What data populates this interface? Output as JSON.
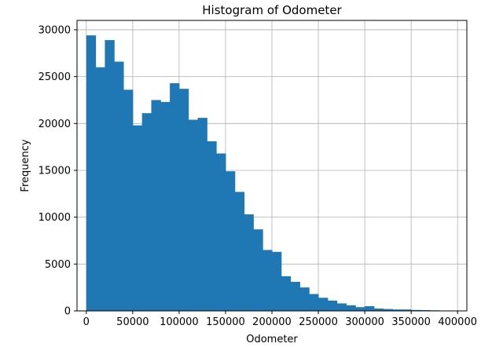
{
  "chart_data": {
    "type": "bar",
    "title": "Histogram of Odometer",
    "xlabel": "Odometer",
    "ylabel": "Frequency",
    "xlim": [
      -10000,
      410000
    ],
    "ylim": [
      0,
      31000
    ],
    "grid": true,
    "bar_color": "#1f77b4",
    "bin_width": 10000,
    "bin_starts": [
      0,
      10000,
      20000,
      30000,
      40000,
      50000,
      60000,
      70000,
      80000,
      90000,
      100000,
      110000,
      120000,
      130000,
      140000,
      150000,
      160000,
      170000,
      180000,
      190000,
      200000,
      210000,
      220000,
      230000,
      240000,
      250000,
      260000,
      270000,
      280000,
      290000,
      300000,
      310000,
      320000,
      330000,
      340000,
      350000,
      360000,
      370000,
      380000,
      390000
    ],
    "values": [
      29400,
      26000,
      28900,
      26600,
      23600,
      19800,
      21100,
      22500,
      22300,
      24300,
      23700,
      20400,
      20600,
      18100,
      16800,
      14900,
      12700,
      10300,
      8700,
      6500,
      6300,
      3700,
      3100,
      2500,
      1800,
      1400,
      1100,
      800,
      600,
      400,
      500,
      250,
      200,
      150,
      150,
      100,
      80,
      60,
      40,
      20
    ],
    "x_ticks": [
      0,
      50000,
      100000,
      150000,
      200000,
      250000,
      300000,
      350000,
      400000
    ],
    "x_tick_labels": [
      "0",
      "50000",
      "100000",
      "150000",
      "200000",
      "250000",
      "300000",
      "350000",
      "400000"
    ],
    "y_ticks": [
      0,
      5000,
      10000,
      15000,
      20000,
      25000,
      30000
    ],
    "y_tick_labels": [
      "0",
      "5000",
      "10000",
      "15000",
      "20000",
      "25000",
      "30000"
    ]
  }
}
